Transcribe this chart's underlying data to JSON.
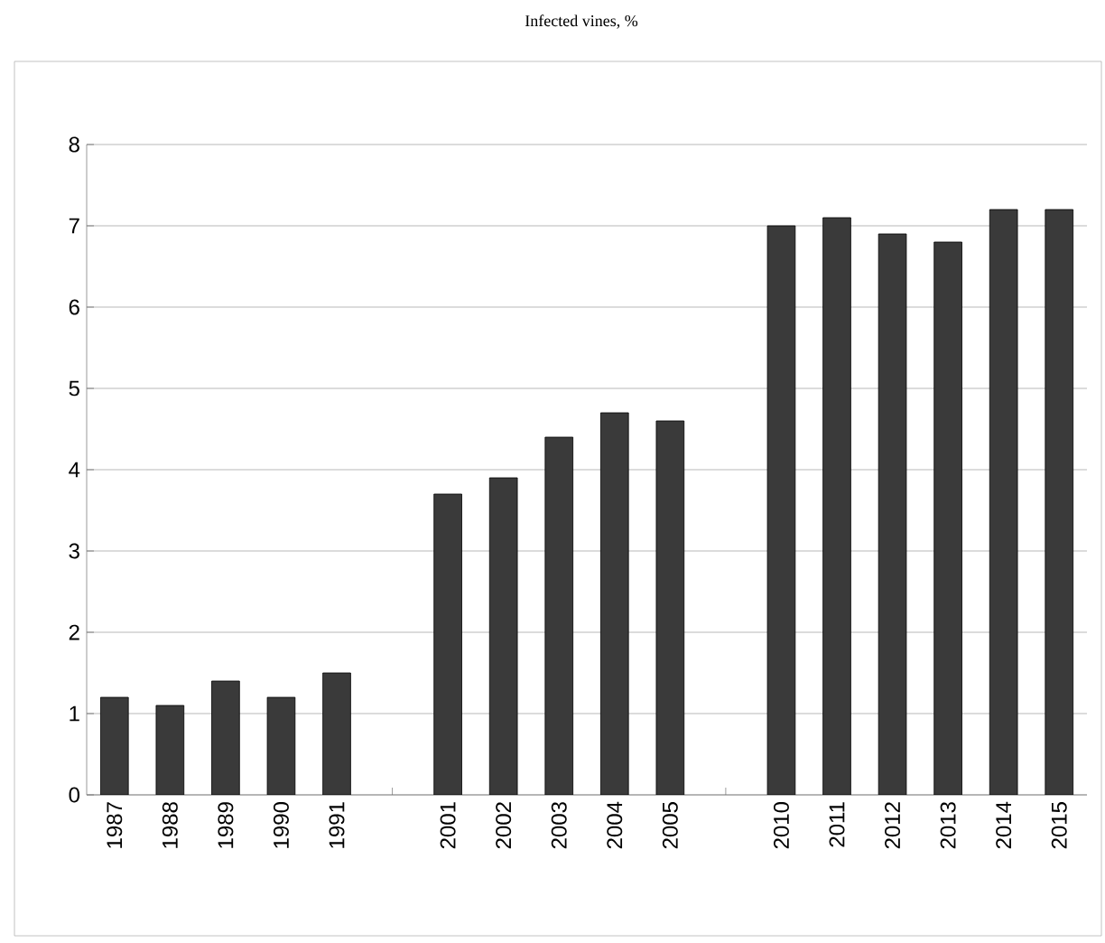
{
  "chart_data": {
    "type": "bar",
    "title": "Infected vines, %",
    "categories": [
      "1987",
      "1988",
      "1989",
      "1990",
      "1991",
      null,
      "2001",
      "2002",
      "2003",
      "2004",
      "2005",
      null,
      "2010",
      "2011",
      "2012",
      "2013",
      "2014",
      "2015"
    ],
    "values": [
      1.2,
      1.1,
      1.4,
      1.2,
      1.5,
      null,
      3.7,
      3.9,
      4.4,
      4.7,
      4.6,
      null,
      7.0,
      7.1,
      6.9,
      6.8,
      7.2,
      7.2
    ],
    "color": "#3a3a3a",
    "ylim": [
      0,
      8
    ],
    "yticks": [
      0,
      1,
      2,
      3,
      4,
      5,
      6,
      7,
      8
    ],
    "grid": "y"
  }
}
